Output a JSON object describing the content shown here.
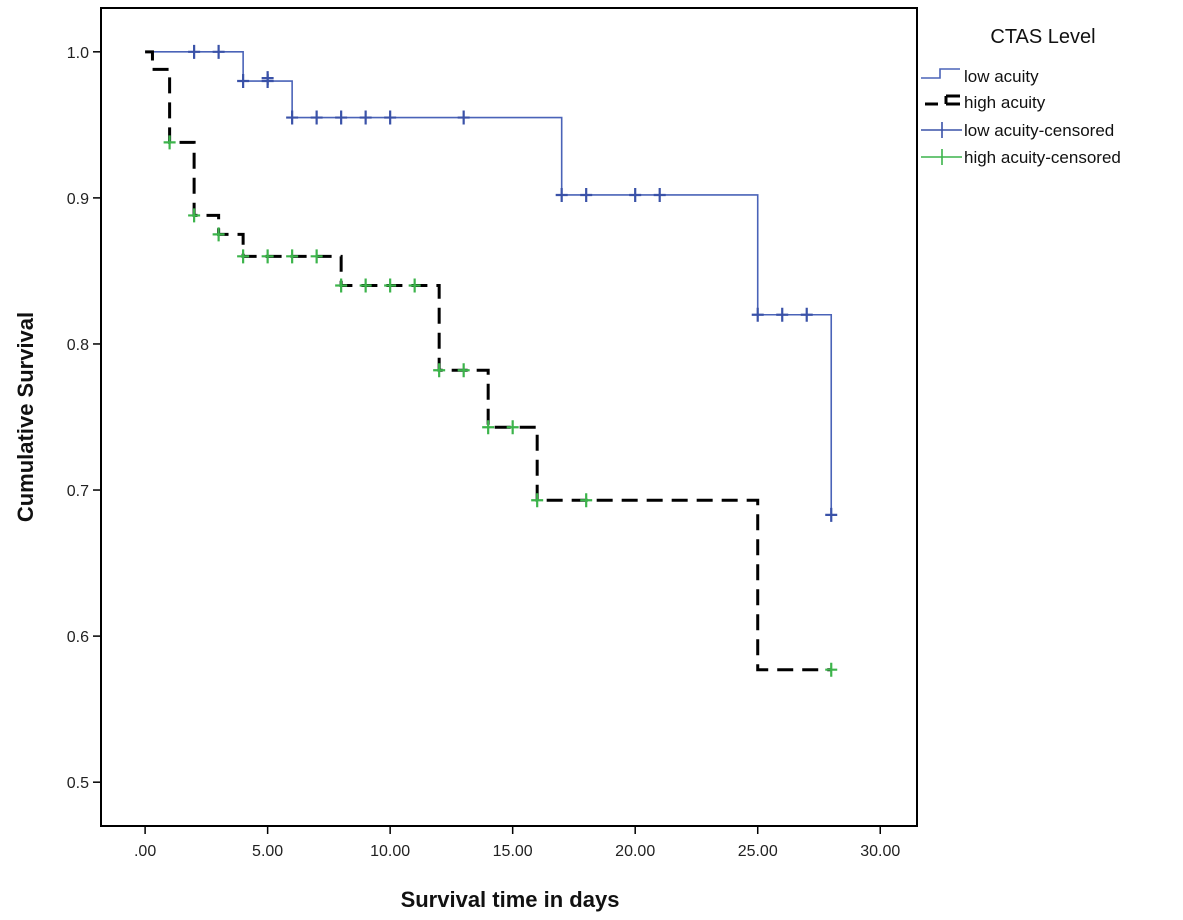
{
  "chart_data": {
    "type": "line",
    "subtype": "kaplan-meier step",
    "xlabel": "Survival time in days",
    "ylabel": "Cumulative Survival",
    "xlim": [
      -1.8,
      31.5
    ],
    "ylim": [
      0.47,
      1.03
    ],
    "xticks": [
      0,
      5,
      10,
      15,
      20,
      25,
      30
    ],
    "xtick_labels": [
      ".00",
      "5.00",
      "10.00",
      "15.00",
      "20.00",
      "25.00",
      "30.00"
    ],
    "yticks": [
      0.5,
      0.6,
      0.7,
      0.8,
      0.9,
      1.0
    ],
    "ytick_labels": [
      "0.5",
      "0.6",
      "0.7",
      "0.8",
      "0.9",
      "1.0"
    ],
    "grid": false,
    "legend": {
      "title": "CTAS Level",
      "position": "outside right, top",
      "entries": [
        "low acuity",
        "high acuity",
        "low acuity-censored",
        "high acuity-censored"
      ]
    },
    "series": [
      {
        "name": "low acuity",
        "style": "solid",
        "color": "#4a63b8",
        "step_points": [
          [
            0,
            1.0
          ],
          [
            4,
            0.98
          ],
          [
            6,
            0.955
          ],
          [
            17,
            0.902
          ],
          [
            25,
            0.82
          ],
          [
            28,
            0.683
          ]
        ]
      },
      {
        "name": "high acuity",
        "style": "dashed",
        "color": "#000000",
        "step_points": [
          [
            0,
            1.0
          ],
          [
            0.3,
            0.988
          ],
          [
            1,
            0.938
          ],
          [
            2,
            0.888
          ],
          [
            3,
            0.875
          ],
          [
            4,
            0.86
          ],
          [
            8,
            0.84
          ],
          [
            12,
            0.782
          ],
          [
            14,
            0.743
          ],
          [
            16,
            0.693
          ],
          [
            25,
            0.577
          ],
          [
            28,
            0.577
          ]
        ]
      },
      {
        "name": "low acuity-censored",
        "marker": "+",
        "color": "#3a52a8",
        "points": [
          [
            2,
            1.0
          ],
          [
            3,
            1.0
          ],
          [
            4,
            0.98
          ],
          [
            5,
            0.98
          ],
          [
            5,
            0.982
          ],
          [
            6,
            0.955
          ],
          [
            7,
            0.955
          ],
          [
            8,
            0.955
          ],
          [
            9,
            0.955
          ],
          [
            10,
            0.955
          ],
          [
            13,
            0.955
          ],
          [
            17,
            0.902
          ],
          [
            18,
            0.902
          ],
          [
            20,
            0.902
          ],
          [
            21,
            0.902
          ],
          [
            25,
            0.82
          ],
          [
            26,
            0.82
          ],
          [
            27,
            0.82
          ],
          [
            28,
            0.683
          ]
        ]
      },
      {
        "name": "high acuity-censored",
        "marker": "+",
        "color": "#3cb44b",
        "points": [
          [
            1,
            0.938
          ],
          [
            2,
            0.888
          ],
          [
            3,
            0.875
          ],
          [
            4,
            0.86
          ],
          [
            5,
            0.86
          ],
          [
            6,
            0.86
          ],
          [
            7,
            0.86
          ],
          [
            8,
            0.84
          ],
          [
            9,
            0.84
          ],
          [
            10,
            0.84
          ],
          [
            11,
            0.84
          ],
          [
            12,
            0.782
          ],
          [
            13,
            0.782
          ],
          [
            14,
            0.743
          ],
          [
            15,
            0.743
          ],
          [
            16,
            0.693
          ],
          [
            18,
            0.693
          ],
          [
            28,
            0.577
          ]
        ]
      }
    ]
  }
}
